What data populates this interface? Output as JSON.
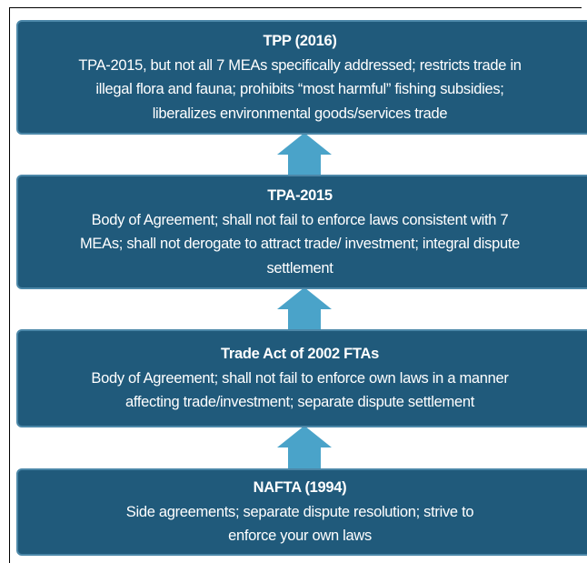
{
  "boxes": [
    {
      "title": "TPP (2016)",
      "lines": [
        "TPA-2015, but not all 7 MEAs specifically addressed; restricts trade in",
        "illegal flora and fauna; prohibits “most harmful” fishing subsidies;",
        "liberalizes environmental goods/services trade"
      ]
    },
    {
      "title": "TPA-2015",
      "lines": [
        "Body of Agreement; shall not fail to enforce laws consistent with 7",
        "MEAs; shall not derogate to attract trade/ investment; integral dispute",
        "settlement"
      ]
    },
    {
      "title": "Trade Act of 2002 FTAs",
      "lines": [
        "Body of Agreement; shall not fail to enforce own laws in a manner",
        "affecting trade/investment; separate dispute settlement"
      ]
    },
    {
      "title": "NAFTA (1994)",
      "lines": [
        "Side agreements; separate dispute resolution; strive to",
        "enforce your own laws"
      ]
    }
  ]
}
